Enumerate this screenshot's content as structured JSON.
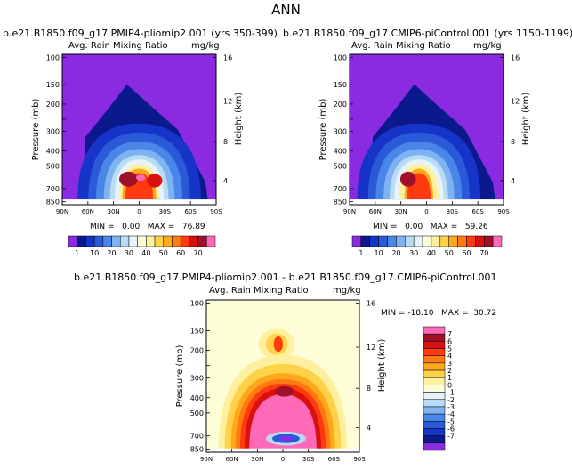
{
  "page": {
    "title": "ANN"
  },
  "panels": [
    {
      "title": "b.e21.B1850.f09_g17.PMIP4-pliomip2.001 (yrs 350-399)",
      "field": "Avg. Rain Mixing Ratio",
      "units": "mg/kg",
      "stats": {
        "min_label": "MIN =",
        "min": "0.00",
        "max_label": "MAX =",
        "max": "76.89"
      }
    },
    {
      "title": "b.e21.B1850.f09_g17.CMIP6-piControl.001 (yrs 1150-1199)",
      "field": "Avg. Rain Mixing Ratio",
      "units": "mg/kg",
      "stats": {
        "min_label": "MIN =",
        "min": "0.00",
        "max_label": "MAX =",
        "max": "59.26"
      }
    },
    {
      "title": "b.e21.B1850.f09_g17.PMIP4-pliomip2.001 - b.e21.B1850.f09_g17.CMIP6-piControl.001",
      "field": "Avg. Rain Mixing Ratio",
      "units": "mg/kg",
      "stats": {
        "min_label": "MIN =",
        "min": "-18.10",
        "max_label": "MAX =",
        "max": "30.72"
      }
    }
  ],
  "axes": {
    "ylabel": "Pressure (mb)",
    "y2label": "Height (km)",
    "pressure_ticks": [
      "100",
      "150",
      "200",
      "250",
      "300",
      "400",
      "500",
      "700",
      "850"
    ],
    "height_ticks": [
      "16",
      "12",
      "8",
      "4"
    ],
    "lat_ticks": [
      "90N",
      "60N",
      "30N",
      "0",
      "30S",
      "60S",
      "90S"
    ]
  },
  "colorbar_abs": {
    "labels": [
      "1",
      "10",
      "20",
      "30",
      "40",
      "50",
      "60",
      "70"
    ],
    "colors": [
      "#8a2be2",
      "#0a1a8c",
      "#1634c8",
      "#2a5ad8",
      "#4a86e8",
      "#7fb2f0",
      "#b9dcf6",
      "#e6f3fa",
      "#fdfdd8",
      "#fff0a0",
      "#ffd24a",
      "#ffa81c",
      "#ff7a12",
      "#ff3a0f",
      "#d81010",
      "#a01028",
      "#ff6ab8"
    ]
  },
  "colorbar_diff": {
    "labels": [
      "7",
      "6",
      "5",
      "4",
      "3",
      "2",
      "1",
      "0",
      "-1",
      "-2",
      "-3",
      "-4",
      "-5",
      "-6",
      "-7"
    ],
    "colors": [
      "#ff6ab8",
      "#a01028",
      "#d81010",
      "#ff3a0f",
      "#ff7a12",
      "#ffa81c",
      "#ffd24a",
      "#fff0a0",
      "#fdfdd8",
      "#e6f3fa",
      "#b9dcf6",
      "#7fb2f0",
      "#4a86e8",
      "#2a5ad8",
      "#1634c8",
      "#0a1a8c",
      "#8a2be2"
    ]
  },
  "chart_data": [
    {
      "type": "heatmap",
      "title": "b.e21.B1850.f09_g17.PMIP4-pliomip2.001 (yrs 350-399)",
      "subtitle": "Avg. Rain Mixing Ratio (mg/kg)",
      "x": "latitude 90N to 90S",
      "y": "pressure (mb) 100 to 850",
      "min": 0.0,
      "max": 76.89,
      "contour_levels": [
        1,
        10,
        20,
        30,
        40,
        50,
        60,
        70
      ],
      "feature": "rain maximum near 700 mb, 20N-20S, peak ~77 mg/kg"
    },
    {
      "type": "heatmap",
      "title": "b.e21.B1850.f09_g17.CMIP6-piControl.001 (yrs 1150-1199)",
      "subtitle": "Avg. Rain Mixing Ratio (mg/kg)",
      "x": "latitude 90N to 90S",
      "y": "pressure (mb) 100 to 850",
      "min": 0.0,
      "max": 59.26,
      "contour_levels": [
        1,
        10,
        20,
        30,
        40,
        50,
        60,
        70
      ],
      "feature": "rain maximum near 700 mb, 20N-5S, peak ~59 mg/kg"
    },
    {
      "type": "heatmap",
      "title": "b.e21.B1850.f09_g17.PMIP4-pliomip2.001 - b.e21.B1850.f09_g17.CMIP6-piControl.001",
      "subtitle": "Avg. Rain Mixing Ratio difference (mg/kg)",
      "x": "latitude 90N to 90S",
      "y": "pressure (mb) 100 to 850",
      "min": -18.1,
      "max": 30.72,
      "contour_levels": [
        -7,
        -6,
        -5,
        -4,
        -3,
        -2,
        -1,
        0,
        1,
        2,
        3,
        4,
        5,
        6,
        7
      ],
      "feature": "positive differences (>7) over 500-850 mb in the tropics, negative pocket near 750 mb"
    }
  ]
}
